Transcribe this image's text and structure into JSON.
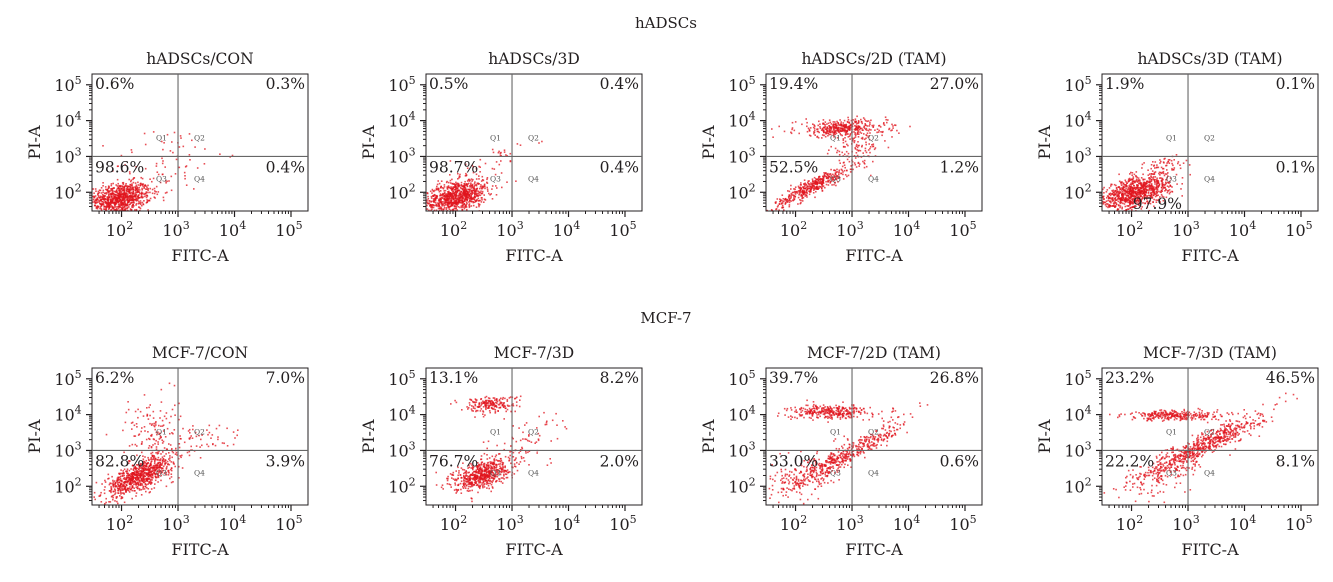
{
  "chart_data": {
    "type": "scatter",
    "axis_scale": "log",
    "xlim": [
      30,
      200000
    ],
    "ylim": [
      30,
      200000
    ],
    "gate": {
      "x": 1000,
      "y": 1000
    },
    "point_color": "#e0141e",
    "gate_color": "#666666",
    "tick_values": [
      100,
      1000,
      10000,
      100000
    ],
    "tick_base": "10",
    "tick_exponents": [
      "2",
      "3",
      "4",
      "5"
    ],
    "y_tick_exponents_shown": [
      "2",
      "3",
      "4",
      "5"
    ],
    "quadrant_labels": [
      "Q1",
      "Q2",
      "Q3",
      "Q4"
    ],
    "groups": [
      {
        "title": "hADSCs",
        "panels": [
          {
            "title": "hADSCs/CON",
            "xlabel": "FITC-A",
            "ylabel": "PI-A",
            "quadrants": {
              "Q1": "0.6%",
              "Q2": "0.3%",
              "Q3": "98.6%",
              "Q4": "0.4%"
            }
          },
          {
            "title": "hADSCs/3D",
            "xlabel": "FITC-A",
            "ylabel": "PI-A",
            "quadrants": {
              "Q1": "0.5%",
              "Q2": "0.4%",
              "Q3": "98.7%",
              "Q4": "0.4%"
            }
          },
          {
            "title": "hADSCs/2D (TAM)",
            "xlabel": "FITC-A",
            "ylabel": "PI-A",
            "quadrants": {
              "Q1": "19.4%",
              "Q2": "27.0%",
              "Q3": "52.5%",
              "Q4": "1.2%"
            }
          },
          {
            "title": "hADSCs/3D (TAM)",
            "xlabel": "FITC-A",
            "ylabel": "PI-A",
            "quadrants": {
              "Q1": "1.9%",
              "Q2": "0.1%",
              "Q3": "97.9%",
              "Q4": "0.1%"
            }
          }
        ]
      },
      {
        "title": "MCF-7",
        "panels": [
          {
            "title": "MCF-7/CON",
            "xlabel": "FITC-A",
            "ylabel": "PI-A",
            "quadrants": {
              "Q1": "6.2%",
              "Q2": "7.0%",
              "Q3": "82.8%",
              "Q4": "3.9%"
            }
          },
          {
            "title": "MCF-7/3D",
            "xlabel": "FITC-A",
            "ylabel": "PI-A",
            "quadrants": {
              "Q1": "13.1%",
              "Q2": "8.2%",
              "Q3": "76.7%",
              "Q4": "2.0%"
            }
          },
          {
            "title": "MCF-7/2D (TAM)",
            "xlabel": "FITC-A",
            "ylabel": "PI-A",
            "quadrants": {
              "Q1": "39.7%",
              "Q2": "26.8%",
              "Q3": "33.0%",
              "Q4": "0.6%"
            }
          },
          {
            "title": "MCF-7/3D (TAM)",
            "xlabel": "FITC-A",
            "ylabel": "PI-A",
            "quadrants": {
              "Q1": "23.2%",
              "Q2": "46.5%",
              "Q3": "22.2%",
              "Q4": "8.1%"
            }
          }
        ]
      }
    ]
  }
}
